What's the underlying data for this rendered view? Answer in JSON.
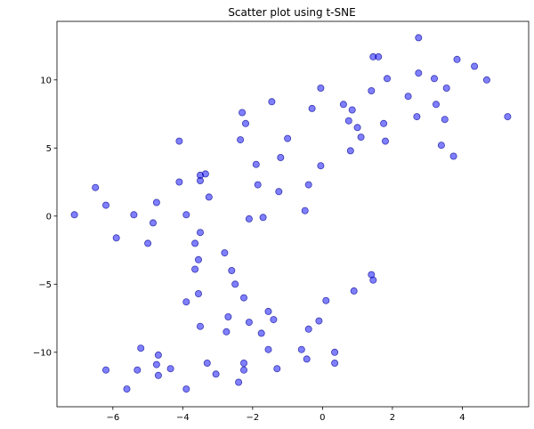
{
  "chart_data": {
    "type": "scatter",
    "title": "Scatter plot using t-SNE",
    "xlabel": "",
    "ylabel": "",
    "xlim": [
      -7.6,
      5.9
    ],
    "ylim": [
      -14,
      14.3
    ],
    "xticks": [
      -6,
      -4,
      -2,
      0,
      2,
      4
    ],
    "yticks": [
      -10,
      -5,
      0,
      5,
      10
    ],
    "xtick_labels": [
      "−6",
      "−4",
      "−2",
      "0",
      "2",
      "4"
    ],
    "ytick_labels": [
      "−10",
      "−5",
      "0",
      "5",
      "10"
    ],
    "grid": false,
    "marker_color": "#0000ff",
    "marker_edge": "#00008b",
    "x": [
      -7.1,
      -6.5,
      -6.2,
      -5.9,
      -5.4,
      -5.0,
      -4.85,
      -4.75,
      -4.1,
      -4.1,
      -3.9,
      -3.65,
      -3.55,
      -3.5,
      -3.35,
      -3.25,
      -2.35,
      -2.3,
      -2.2,
      -2.1,
      -1.9,
      -1.85,
      -1.7,
      -1.45,
      -1.25,
      -1.2,
      -1.0,
      -0.5,
      -0.4,
      -0.3,
      -0.05,
      -0.05,
      0.6,
      0.75,
      0.8,
      0.85,
      1.0,
      1.1,
      1.4,
      1.45,
      1.6,
      1.75,
      1.8,
      1.85,
      2.45,
      2.7,
      2.75,
      2.75,
      3.2,
      3.25,
      3.4,
      3.5,
      3.55,
      3.75,
      3.85,
      4.35,
      4.7,
      5.3,
      -3.65,
      -3.55,
      -3.5,
      -3.5,
      -3.9,
      -3.5,
      -2.8,
      -2.6,
      -2.5,
      -2.25,
      -2.7,
      -2.1,
      -2.75,
      -1.75,
      -1.55,
      -1.4,
      -0.1,
      0.1,
      -0.4,
      0.9,
      1.4,
      1.45,
      -6.2,
      -5.3,
      -5.2,
      -4.75,
      -4.7,
      -4.7,
      -4.35,
      -3.9,
      -3.3,
      -3.05,
      -2.4,
      -2.25,
      -2.25,
      -1.55,
      -1.3,
      -0.6,
      -0.45,
      0.35,
      0.35,
      -5.6
    ],
    "y": [
      0.1,
      2.1,
      0.8,
      -1.6,
      0.1,
      -2.0,
      -0.5,
      1.0,
      5.5,
      2.5,
      0.1,
      -2.0,
      -3.2,
      2.6,
      3.1,
      1.4,
      5.6,
      7.6,
      6.8,
      -0.2,
      3.8,
      2.3,
      -0.1,
      8.4,
      1.8,
      4.3,
      5.7,
      0.4,
      2.3,
      7.9,
      9.4,
      3.7,
      8.2,
      7.0,
      4.8,
      7.8,
      6.5,
      5.8,
      9.2,
      11.7,
      11.7,
      6.8,
      5.5,
      10.1,
      8.8,
      7.3,
      13.1,
      10.5,
      10.1,
      8.2,
      5.2,
      7.1,
      9.4,
      4.4,
      11.5,
      11.0,
      10.0,
      7.3,
      -3.9,
      -5.7,
      -8.1,
      -1.2,
      -6.3,
      3.0,
      -2.7,
      -4.0,
      -5.0,
      -6.0,
      -7.4,
      -7.8,
      -8.5,
      -8.6,
      -7.0,
      -7.6,
      -7.7,
      -6.2,
      -8.3,
      -5.5,
      -4.3,
      -4.7,
      -11.3,
      -11.3,
      -9.7,
      -10.9,
      -10.2,
      -11.7,
      -11.2,
      -12.7,
      -10.8,
      -11.6,
      -12.2,
      -10.8,
      -11.3,
      -9.8,
      -11.2,
      -9.8,
      -10.5,
      -10.0,
      -10.8,
      -12.7
    ]
  }
}
